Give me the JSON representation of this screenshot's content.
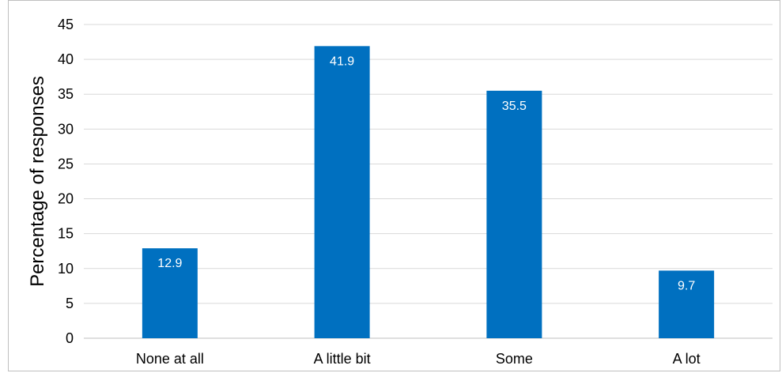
{
  "chart_data": {
    "type": "bar",
    "categories": [
      "None at all",
      "A little bit",
      "Some",
      "A lot"
    ],
    "series": [
      {
        "values": [
          12.9,
          41.9,
          35.5,
          9.7
        ]
      }
    ],
    "data_labels": [
      "12.9",
      "41.9",
      "35.5",
      "9.7"
    ],
    "xlabel": "",
    "ylabel": "Percentage of responses",
    "ylim": [
      0,
      45
    ],
    "yticks": [
      0,
      5,
      10,
      15,
      20,
      25,
      30,
      35,
      40,
      45
    ],
    "grid": true,
    "legend": "none",
    "colors": {
      "bar": "#0070C0",
      "grid": "#d9d9d9",
      "frame": "#bfbfbf"
    }
  }
}
